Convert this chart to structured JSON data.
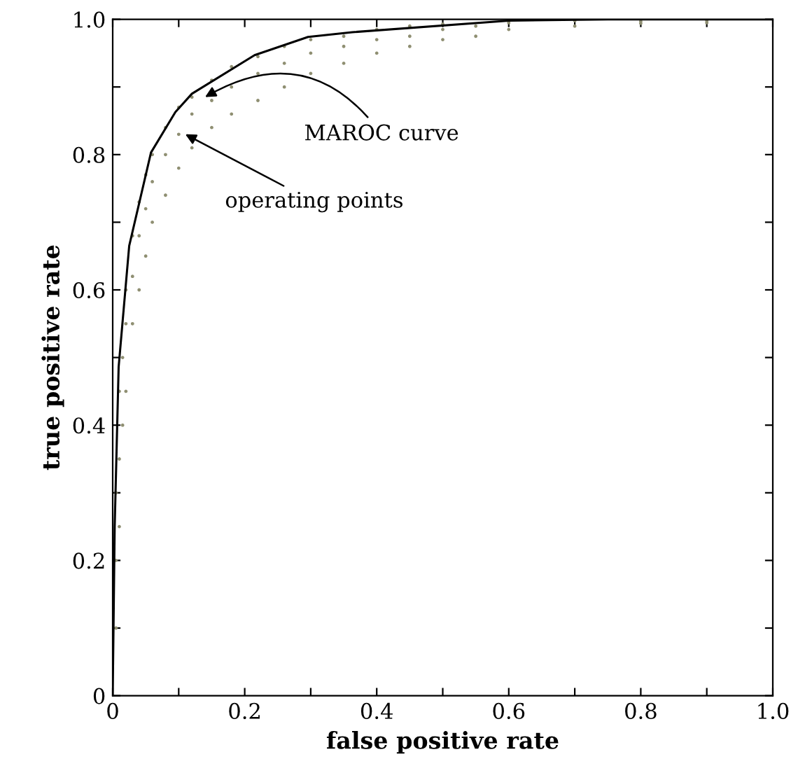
{
  "chart_data": {
    "type": "scatter",
    "xlabel": "false positive rate",
    "ylabel": "true positive rate",
    "xlim": [
      0,
      1
    ],
    "ylim": [
      0,
      1
    ],
    "xticks": [
      0,
      {
        "value": 0.1,
        "label": null
      },
      0.2,
      {
        "value": 0.3,
        "label": null
      },
      0.4,
      {
        "value": 0.5,
        "label": null
      },
      0.6,
      {
        "value": 0.7,
        "label": null
      },
      0.8,
      {
        "value": 0.9,
        "label": null
      },
      {
        "value": 1,
        "label": "1.0"
      }
    ],
    "yticks": [
      0,
      {
        "value": 0.1,
        "label": null
      },
      0.2,
      {
        "value": 0.3,
        "label": null
      },
      0.4,
      {
        "value": 0.5,
        "label": null
      },
      0.6,
      {
        "value": 0.7,
        "label": null
      },
      0.8,
      {
        "value": 0.9,
        "label": null
      },
      {
        "value": 1,
        "label": "1.0"
      }
    ],
    "grid": false,
    "legend": false,
    "series": [
      {
        "color": "#8f8f72",
        "marker": "circle",
        "x": [
          0.005,
          0.005,
          0.005,
          0.01,
          0.01,
          0.01,
          0.015,
          0.015,
          0.02,
          0.02,
          0.02,
          0.03,
          0.03,
          0.03,
          0.04,
          0.04,
          0.04,
          0.05,
          0.05,
          0.05,
          0.06,
          0.06,
          0.06,
          0.08,
          0.08,
          0.08,
          0.1,
          0.1,
          0.1,
          0.12,
          0.12,
          0.12,
          0.15,
          0.15,
          0.15,
          0.18,
          0.18,
          0.18,
          0.22,
          0.22,
          0.22,
          0.26,
          0.26,
          0.26,
          0.3,
          0.3,
          0.3,
          0.35,
          0.35,
          0.35,
          0.4,
          0.4,
          0.4,
          0.45,
          0.45,
          0.45,
          0.5,
          0.5,
          0.5,
          0.55,
          0.55,
          0.6,
          0.6,
          0.7,
          0.7,
          0.8,
          0.8,
          0.9,
          0.9
        ],
        "values": [
          0.1,
          0.2,
          0.3,
          0.25,
          0.35,
          0.45,
          0.4,
          0.5,
          0.45,
          0.55,
          0.6,
          0.55,
          0.62,
          0.68,
          0.6,
          0.68,
          0.73,
          0.65,
          0.72,
          0.77,
          0.7,
          0.76,
          0.8,
          0.74,
          0.8,
          0.84,
          0.78,
          0.83,
          0.87,
          0.81,
          0.86,
          0.885,
          0.84,
          0.88,
          0.91,
          0.86,
          0.9,
          0.93,
          0.88,
          0.92,
          0.945,
          0.9,
          0.935,
          0.96,
          0.92,
          0.95,
          0.97,
          0.935,
          0.96,
          0.975,
          0.95,
          0.97,
          0.985,
          0.96,
          0.975,
          0.99,
          0.97,
          0.985,
          0.993,
          0.975,
          0.99,
          0.985,
          0.995,
          0.99,
          0.998,
          0.997,
          0.994,
          0.998,
          0.995
        ]
      },
      {
        "type": "line",
        "color": "#000000",
        "marker": "none",
        "line_style": "solid",
        "x": [
          0,
          0.003,
          0.009,
          0.025,
          0.058,
          0.095,
          0.12,
          0.215,
          0.296,
          0.363,
          0.6,
          0.75,
          1
        ],
        "values": [
          0,
          0.25,
          0.486,
          0.665,
          0.803,
          0.863,
          0.89,
          0.947,
          0.974,
          0.981,
          0.998,
          1,
          1
        ]
      }
    ],
    "annotations": [
      {
        "text": "MAROC curve",
        "x": 0.14,
        "y": 0.885
      },
      {
        "text": "operating points",
        "x": 0.11,
        "y": 0.83
      }
    ]
  }
}
